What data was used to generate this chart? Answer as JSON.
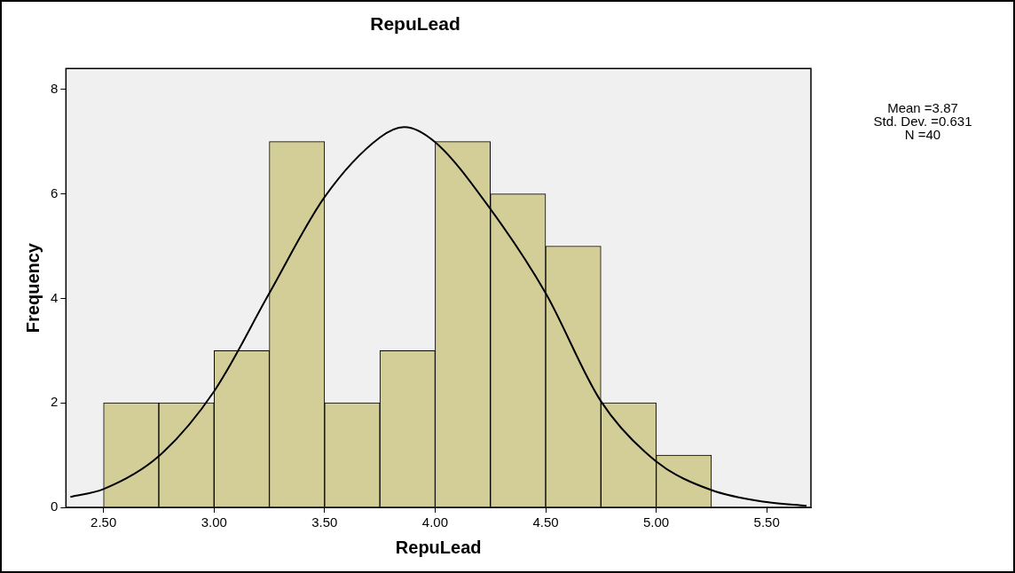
{
  "chart_data": {
    "type": "histogram",
    "title": "RepuLead",
    "xlabel": "RepuLead",
    "ylabel": "Frequency",
    "bins": [
      2.5,
      2.75,
      3.0,
      3.25,
      3.5,
      3.75,
      4.0,
      4.25,
      4.5,
      4.75,
      5.0,
      5.25
    ],
    "values": [
      2,
      2,
      3,
      7,
      2,
      3,
      7,
      6,
      5,
      2,
      1
    ],
    "color": "#d3ce98",
    "series": [
      {
        "type": "line",
        "color": "#000000",
        "x": [
          2.35,
          2.5,
          2.75,
          3.0,
          3.25,
          3.5,
          3.75,
          3.86,
          4.0,
          4.25,
          4.5,
          4.75,
          5.0,
          5.25,
          5.5,
          5.68
        ],
        "values": [
          0.2,
          0.35,
          0.98,
          2.22,
          4.1,
          5.94,
          7.08,
          7.28,
          6.99,
          5.71,
          4.1,
          2.03,
          0.88,
          0.33,
          0.1,
          0.03
        ]
      }
    ],
    "xlim": [
      2.33,
      5.7
    ],
    "ylim": [
      0,
      8.4
    ],
    "xticks": [
      {
        "value": 2.5,
        "label": "2.50"
      },
      {
        "value": 3.0,
        "label": "3.00"
      },
      {
        "value": 3.5,
        "label": "3.50"
      },
      {
        "value": 4.0,
        "label": "4.00"
      },
      {
        "value": 4.5,
        "label": "4.50"
      },
      {
        "value": 5.0,
        "label": "5.00"
      },
      {
        "value": 5.5,
        "label": "5.50"
      }
    ],
    "yticks": [
      0,
      2,
      4,
      6,
      8
    ],
    "annotations": [
      "Mean =3.87",
      "Std. Dev. =0.631",
      "N =40"
    ],
    "grid": false,
    "legend": false,
    "marker": "none",
    "line_style": "solid"
  }
}
